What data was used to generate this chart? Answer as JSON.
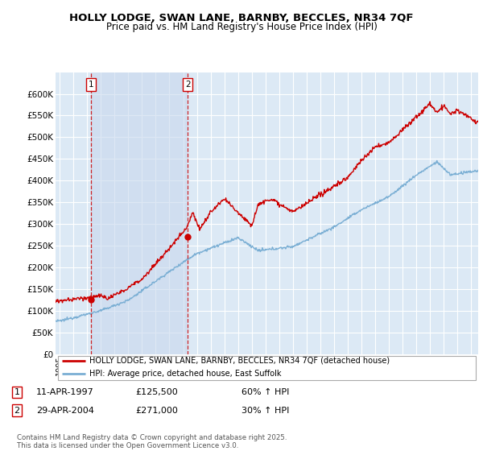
{
  "title": "HOLLY LODGE, SWAN LANE, BARNBY, BECCLES, NR34 7QF",
  "subtitle": "Price paid vs. HM Land Registry's House Price Index (HPI)",
  "ylim": [
    0,
    650000
  ],
  "yticks": [
    0,
    50000,
    100000,
    150000,
    200000,
    250000,
    300000,
    350000,
    400000,
    450000,
    500000,
    550000,
    600000
  ],
  "xlim_start": 1994.7,
  "xlim_end": 2025.5,
  "bg_color": "#dce9f5",
  "shade_color": "#c8d8ed",
  "grid_color": "#ffffff",
  "red_line_color": "#cc0000",
  "blue_line_color": "#7bafd4",
  "sale1_x": 1997.28,
  "sale1_y": 125500,
  "sale2_x": 2004.33,
  "sale2_y": 271000,
  "legend_red_label": "HOLLY LODGE, SWAN LANE, BARNBY, BECCLES, NR34 7QF (detached house)",
  "legend_blue_label": "HPI: Average price, detached house, East Suffolk",
  "footer": "Contains HM Land Registry data © Crown copyright and database right 2025.\nThis data is licensed under the Open Government Licence v3.0.",
  "title_fontsize": 9.5,
  "subtitle_fontsize": 8.5
}
